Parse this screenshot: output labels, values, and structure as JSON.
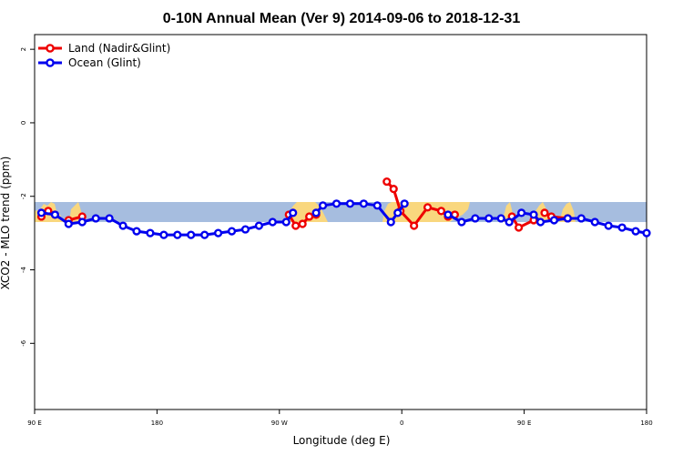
{
  "chart_data": {
    "type": "line",
    "title": "0-10N Annual Mean (Ver 9)   2014-09-06 to 2018-12-31",
    "xlabel": "Longitude (deg E)",
    "ylabel": "XCO2 - MLO trend (ppm)",
    "xlim": [
      90,
      540
    ],
    "ylim": [
      -7.8,
      2.4
    ],
    "x_ticks": [
      {
        "value": 90,
        "label": "90 E"
      },
      {
        "value": 180,
        "label": "180"
      },
      {
        "value": 270,
        "label": "90 W"
      },
      {
        "value": 360,
        "label": "0"
      },
      {
        "value": 450,
        "label": "90 E"
      },
      {
        "value": 540,
        "label": "180"
      }
    ],
    "y_ticks": [
      {
        "value": 2,
        "label": "2"
      },
      {
        "value": 0,
        "label": "0"
      },
      {
        "value": -2,
        "label": "-2"
      },
      {
        "value": -4,
        "label": "-4"
      },
      {
        "value": -6,
        "label": "-6"
      }
    ],
    "legend_position": "top-left",
    "colors": {
      "land": "#ee0000",
      "ocean": "#0000ee",
      "band": "#a6bddf",
      "landmass": "#f9d77e"
    },
    "series": [
      {
        "name": "Land (Nadir&Glint)",
        "color": "#ee0000",
        "segments": [
          {
            "x": [
              95,
              100,
              105
            ],
            "y": [
              -2.55,
              -2.4,
              -2.5
            ]
          },
          {
            "x": [
              115,
              125
            ],
            "y": [
              -2.65,
              -2.55
            ]
          },
          {
            "x": [
              277,
              282,
              287,
              292,
              297
            ],
            "y": [
              -2.5,
              -2.8,
              -2.75,
              -2.55,
              -2.5
            ]
          },
          {
            "x": [
              349,
              354,
              359,
              369,
              379,
              389,
              394,
              399
            ],
            "y": [
              -1.6,
              -1.8,
              -2.4,
              -2.8,
              -2.3,
              -2.4,
              -2.55,
              -2.5
            ]
          },
          {
            "x": [
              441,
              446,
              457
            ],
            "y": [
              -2.55,
              -2.85,
              -2.65
            ]
          },
          {
            "x": [
              465,
              470,
              482
            ],
            "y": [
              -2.45,
              -2.55,
              -2.6
            ]
          }
        ]
      },
      {
        "name": "Ocean (Glint)",
        "color": "#0000ee",
        "segments": [
          {
            "x": [
              95,
              105,
              115,
              125,
              135,
              145,
              155,
              165,
              175,
              185,
              195,
              205,
              215,
              225,
              235,
              245,
              255,
              265,
              275,
              280
            ],
            "y": [
              -2.45,
              -2.5,
              -2.75,
              -2.7,
              -2.6,
              -2.6,
              -2.8,
              -2.95,
              -3.0,
              -3.05,
              -3.05,
              -3.05,
              -3.05,
              -3.0,
              -2.95,
              -2.9,
              -2.8,
              -2.7,
              -2.7,
              -2.45
            ]
          },
          {
            "x": [
              297,
              302,
              312,
              322,
              332,
              342,
              352,
              357,
              362
            ],
            "y": [
              -2.45,
              -2.25,
              -2.2,
              -2.2,
              -2.2,
              -2.25,
              -2.7,
              -2.45,
              -2.2
            ]
          },
          {
            "x": [
              394,
              404,
              414,
              424,
              433,
              439,
              448,
              457,
              462,
              472,
              482,
              492,
              502,
              512,
              522,
              532,
              540
            ],
            "y": [
              -2.5,
              -2.7,
              -2.6,
              -2.6,
              -2.6,
              -2.7,
              -2.45,
              -2.5,
              -2.7,
              -2.65,
              -2.6,
              -2.6,
              -2.7,
              -2.8,
              -2.85,
              -2.95,
              -3.0
            ]
          }
        ]
      }
    ]
  }
}
